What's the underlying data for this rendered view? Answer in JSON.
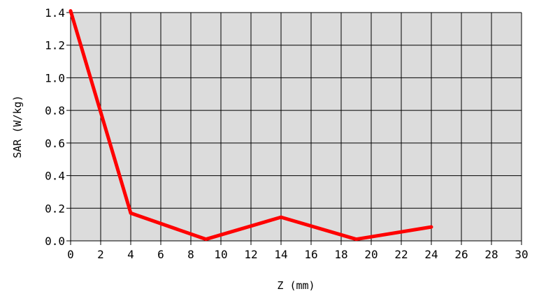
{
  "chart_data": {
    "type": "line",
    "title": "",
    "xlabel": "Z (mm)",
    "ylabel": "SAR (W/kg)",
    "xlim": [
      0,
      30
    ],
    "ylim": [
      0.0,
      1.4
    ],
    "x_ticks": [
      0,
      2,
      4,
      6,
      8,
      10,
      12,
      14,
      16,
      18,
      20,
      22,
      24,
      26,
      28,
      30
    ],
    "x_tick_labels": [
      "0",
      "2",
      "4",
      "6",
      "8",
      "10",
      "12",
      "14",
      "16",
      "18",
      "20",
      "22",
      "24",
      "26",
      "28",
      "30"
    ],
    "y_ticks": [
      0.0,
      0.2,
      0.4,
      0.6,
      0.8,
      1.0,
      1.2,
      1.4
    ],
    "y_tick_labels": [
      "0.0",
      "0.2",
      "0.4",
      "0.6",
      "0.8",
      "1.0",
      "1.2",
      "1.4"
    ],
    "grid": true,
    "legend": "none",
    "series": [
      {
        "x": [
          0,
          4,
          9,
          14,
          19,
          24
        ],
        "y": [
          1.41,
          0.17,
          0.01,
          0.145,
          0.01,
          0.085
        ]
      }
    ]
  },
  "colors": {
    "plot_background": "#dcdcdc",
    "grid": "#000000",
    "line": "#ff0000"
  }
}
